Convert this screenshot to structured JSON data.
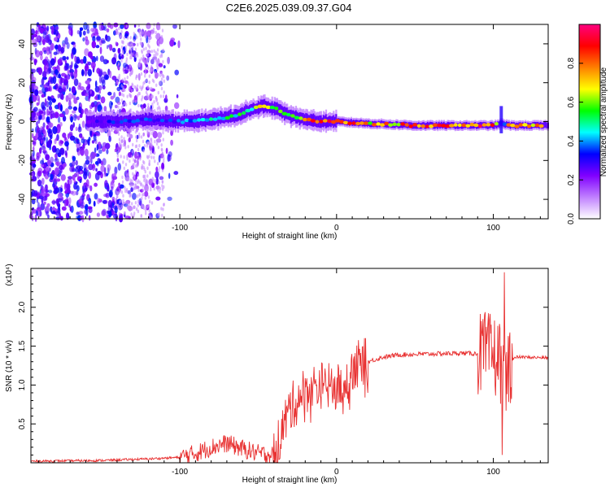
{
  "chart_data": [
    {
      "type": "heatmap",
      "title": "C2E6.2025.039.09.37.G04",
      "xlabel": "Height of straight line (km)",
      "ylabel": "Frequency (Hz)",
      "xlim": [
        -195,
        135
      ],
      "ylim": [
        -50,
        50
      ],
      "x_ticks": [
        -100,
        0,
        100
      ],
      "x_tick_labels": [
        "-100",
        "0",
        "100"
      ],
      "y_ticks": [
        -40,
        -20,
        0,
        20,
        40
      ],
      "y_tick_labels": [
        "-40",
        "-20",
        "0",
        "20",
        "40"
      ],
      "colorbar": {
        "label": "Normalized spectral amplitude",
        "range": [
          0.0,
          1.0
        ],
        "ticks": [
          0.0,
          0.2,
          0.4,
          0.6,
          0.8
        ],
        "tick_labels": [
          "0.0",
          "0.2",
          "0.4",
          "0.6",
          "0.8"
        ],
        "colormap": [
          "#ffffff",
          "#c080ff",
          "#8000ff",
          "#0000ff",
          "#00ffff",
          "#00ff00",
          "#ffff00",
          "#ff8000",
          "#ff0000",
          "#ff0080"
        ]
      },
      "ridge": {
        "description_points_x": [
          -160,
          -140,
          -120,
          -100,
          -80,
          -65,
          -55,
          -48,
          -40,
          -35,
          -30,
          -20,
          -10,
          0,
          20,
          50,
          80,
          100,
          105,
          110,
          135
        ],
        "center_freq": [
          0,
          0,
          1,
          0,
          1,
          3,
          6,
          8,
          7,
          5,
          3,
          1,
          0,
          0,
          -1,
          -2,
          -2,
          -2,
          -1,
          -2,
          -2
        ],
        "amplitude": [
          0.3,
          0.35,
          0.4,
          0.4,
          0.5,
          0.55,
          0.6,
          0.7,
          0.75,
          0.7,
          0.6,
          0.85,
          0.9,
          0.95,
          0.8,
          0.9,
          0.95,
          0.9,
          0.3,
          0.8,
          0.85
        ]
      }
    },
    {
      "type": "line",
      "xlabel": "Height of straight line (km)",
      "ylabel": "SNR (10 * v/v)",
      "y_multiplier": "(x10⁴)",
      "xlim": [
        -195,
        135
      ],
      "ylim": [
        0.0,
        2.5
      ],
      "x_ticks": [
        -100,
        0,
        100
      ],
      "x_tick_labels": [
        "-100",
        "0",
        "100"
      ],
      "y_ticks": [
        0.5,
        1.0,
        1.5,
        2.0
      ],
      "y_tick_labels": [
        "0.5",
        "1.0",
        "1.5",
        "2.0"
      ],
      "series": [
        {
          "name": "SNR",
          "color": "#e83030",
          "x": [
            -195,
            -150,
            -120,
            -100,
            -90,
            -80,
            -70,
            -60,
            -50,
            -40,
            -35,
            -30,
            -25,
            -20,
            -10,
            0,
            5,
            10,
            20,
            30,
            40,
            60,
            80,
            95,
            100,
            105,
            108,
            110,
            115,
            135
          ],
          "y": [
            0.02,
            0.03,
            0.05,
            0.07,
            0.12,
            0.2,
            0.25,
            0.18,
            0.12,
            0.1,
            0.4,
            0.7,
            0.8,
            0.95,
            1.0,
            0.95,
            1.0,
            1.25,
            1.3,
            1.36,
            1.39,
            1.4,
            1.41,
            1.4,
            1.38,
            1.3,
            1.0,
            1.3,
            1.36,
            1.35
          ]
        }
      ]
    }
  ]
}
